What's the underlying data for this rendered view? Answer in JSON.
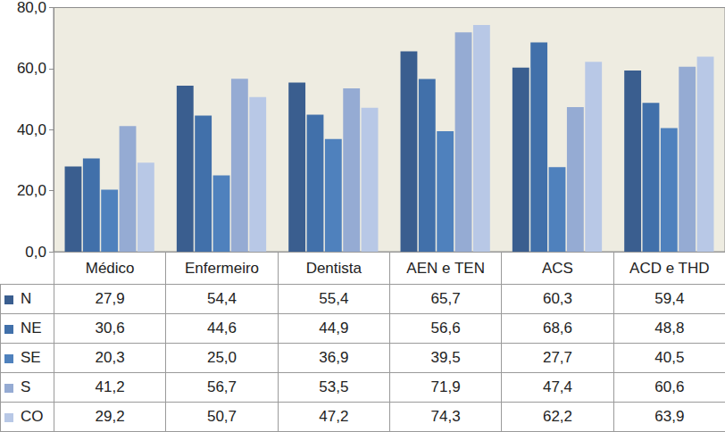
{
  "chart_data": {
    "type": "bar",
    "categories": [
      "Médico",
      "Enfermeiro",
      "Dentista",
      "AEN e TEN",
      "ACS",
      "ACD e THD"
    ],
    "series": [
      {
        "name": "N",
        "color": "#3a5e8f",
        "values": [
          27.9,
          54.4,
          55.4,
          65.7,
          60.3,
          59.4
        ],
        "value_labels": [
          "27,9",
          "54,4",
          "55,4",
          "65,7",
          "60,3",
          "59,4"
        ]
      },
      {
        "name": "NE",
        "color": "#4170aa",
        "values": [
          30.6,
          44.6,
          44.9,
          56.6,
          68.6,
          48.8
        ],
        "value_labels": [
          "30,6",
          "44,6",
          "44,9",
          "56,6",
          "68,6",
          "48,8"
        ]
      },
      {
        "name": "SE",
        "color": "#4f81bd",
        "values": [
          20.3,
          25.0,
          36.9,
          39.5,
          27.7,
          40.5
        ],
        "value_labels": [
          "20,3",
          "25,0",
          "36,9",
          "39,5",
          "27,7",
          "40,5"
        ]
      },
      {
        "name": "S",
        "color": "#95abd3",
        "values": [
          41.2,
          56.7,
          53.5,
          71.9,
          47.4,
          60.6
        ],
        "value_labels": [
          "41,2",
          "56,7",
          "53,5",
          "71,9",
          "47,4",
          "60,6"
        ]
      },
      {
        "name": "CO",
        "color": "#b8c8e6",
        "values": [
          29.2,
          50.7,
          47.2,
          74.3,
          62.2,
          63.9
        ],
        "value_labels": [
          "29,2",
          "50,7",
          "47,2",
          "74,3",
          "62,2",
          "63,9"
        ]
      }
    ],
    "ylim": [
      0,
      80
    ],
    "yticks": [
      {
        "value": 0,
        "label": "0,0"
      },
      {
        "value": 20,
        "label": "20,0"
      },
      {
        "value": 40,
        "label": "40,0"
      },
      {
        "value": 60,
        "label": "60,0"
      },
      {
        "value": 80,
        "label": "80,0"
      }
    ],
    "grid": false
  }
}
